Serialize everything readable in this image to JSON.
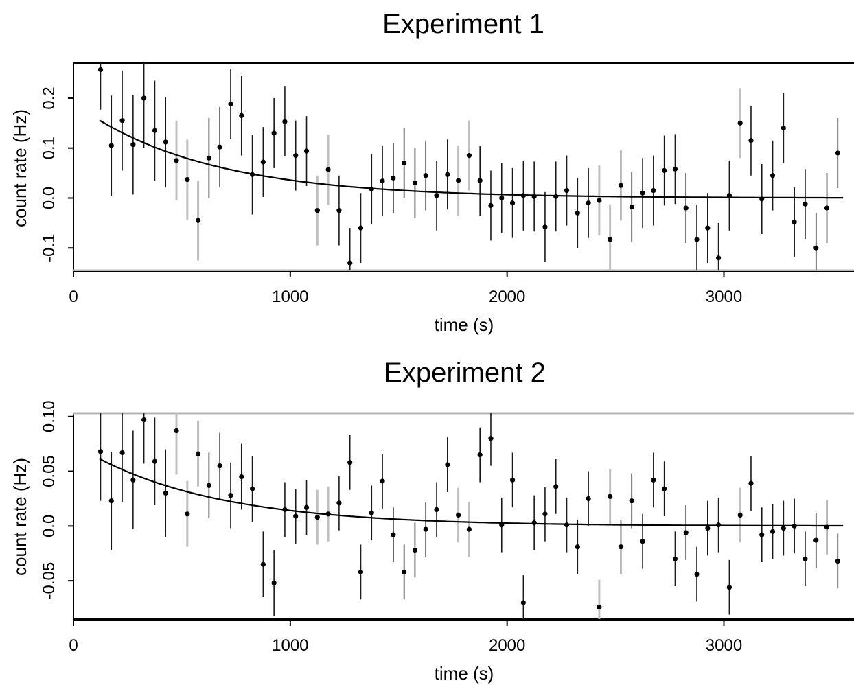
{
  "chart_data": [
    {
      "type": "scatter",
      "title": "Experiment 1",
      "xlabel": "time (s)",
      "ylabel": "count rate (Hz)",
      "xlim": [
        0,
        3600
      ],
      "ylim": [
        -0.145,
        0.27
      ],
      "xticks": [
        "0",
        "1000",
        "2000",
        "3000"
      ],
      "xtick_values": [
        0,
        1000,
        2000,
        3000
      ],
      "yticks": [
        "-0.1",
        "0.0",
        "0.1",
        "0.2"
      ],
      "ytick_values": [
        -0.1,
        0.0,
        0.1,
        0.2
      ],
      "grid": false,
      "fit": {
        "form": "exponential decay",
        "A": 0.19,
        "tau": 600,
        "x_start": 120,
        "x_end": 3550
      },
      "points": [
        {
          "x": 125,
          "y": 0.257,
          "err": 0.08,
          "gray": false
        },
        {
          "x": 175,
          "y": 0.105,
          "err": 0.1,
          "gray": false
        },
        {
          "x": 225,
          "y": 0.155,
          "err": 0.1,
          "gray": false
        },
        {
          "x": 275,
          "y": 0.107,
          "err": 0.1,
          "gray": false
        },
        {
          "x": 325,
          "y": 0.2,
          "err": 0.1,
          "gray": false
        },
        {
          "x": 375,
          "y": 0.135,
          "err": 0.1,
          "gray": false
        },
        {
          "x": 425,
          "y": 0.112,
          "err": 0.09,
          "gray": false
        },
        {
          "x": 475,
          "y": 0.075,
          "err": 0.08,
          "gray": true
        },
        {
          "x": 525,
          "y": 0.037,
          "err": 0.08,
          "gray": true
        },
        {
          "x": 575,
          "y": -0.045,
          "err": 0.08,
          "gray": true
        },
        {
          "x": 625,
          "y": 0.08,
          "err": 0.08,
          "gray": false
        },
        {
          "x": 675,
          "y": 0.102,
          "err": 0.08,
          "gray": false
        },
        {
          "x": 725,
          "y": 0.188,
          "err": 0.07,
          "gray": false
        },
        {
          "x": 775,
          "y": 0.165,
          "err": 0.08,
          "gray": false
        },
        {
          "x": 825,
          "y": 0.047,
          "err": 0.08,
          "gray": false
        },
        {
          "x": 875,
          "y": 0.072,
          "err": 0.07,
          "gray": false
        },
        {
          "x": 925,
          "y": 0.13,
          "err": 0.07,
          "gray": false
        },
        {
          "x": 975,
          "y": 0.153,
          "err": 0.07,
          "gray": false
        },
        {
          "x": 1025,
          "y": 0.085,
          "err": 0.07,
          "gray": false
        },
        {
          "x": 1075,
          "y": 0.094,
          "err": 0.07,
          "gray": false
        },
        {
          "x": 1125,
          "y": -0.025,
          "err": 0.07,
          "gray": true
        },
        {
          "x": 1175,
          "y": 0.057,
          "err": 0.07,
          "gray": true
        },
        {
          "x": 1225,
          "y": -0.025,
          "err": 0.07,
          "gray": false
        },
        {
          "x": 1275,
          "y": -0.13,
          "err": 0.07,
          "gray": false
        },
        {
          "x": 1325,
          "y": -0.06,
          "err": 0.07,
          "gray": false
        },
        {
          "x": 1375,
          "y": 0.018,
          "err": 0.07,
          "gray": false
        },
        {
          "x": 1425,
          "y": 0.034,
          "err": 0.07,
          "gray": false
        },
        {
          "x": 1475,
          "y": 0.04,
          "err": 0.07,
          "gray": false
        },
        {
          "x": 1525,
          "y": 0.07,
          "err": 0.07,
          "gray": false
        },
        {
          "x": 1575,
          "y": 0.03,
          "err": 0.07,
          "gray": false
        },
        {
          "x": 1625,
          "y": 0.045,
          "err": 0.07,
          "gray": false
        },
        {
          "x": 1675,
          "y": 0.005,
          "err": 0.07,
          "gray": false
        },
        {
          "x": 1725,
          "y": 0.047,
          "err": 0.07,
          "gray": false
        },
        {
          "x": 1775,
          "y": 0.035,
          "err": 0.07,
          "gray": true
        },
        {
          "x": 1825,
          "y": 0.085,
          "err": 0.07,
          "gray": true
        },
        {
          "x": 1875,
          "y": 0.035,
          "err": 0.07,
          "gray": false
        },
        {
          "x": 1925,
          "y": -0.015,
          "err": 0.07,
          "gray": false
        },
        {
          "x": 1975,
          "y": 0.0,
          "err": 0.07,
          "gray": false
        },
        {
          "x": 2025,
          "y": -0.01,
          "err": 0.07,
          "gray": false
        },
        {
          "x": 2075,
          "y": 0.005,
          "err": 0.07,
          "gray": false
        },
        {
          "x": 2125,
          "y": 0.003,
          "err": 0.07,
          "gray": false
        },
        {
          "x": 2175,
          "y": -0.058,
          "err": 0.07,
          "gray": false
        },
        {
          "x": 2225,
          "y": 0.003,
          "err": 0.07,
          "gray": false
        },
        {
          "x": 2275,
          "y": 0.015,
          "err": 0.07,
          "gray": false
        },
        {
          "x": 2325,
          "y": -0.03,
          "err": 0.07,
          "gray": false
        },
        {
          "x": 2375,
          "y": -0.01,
          "err": 0.07,
          "gray": false
        },
        {
          "x": 2425,
          "y": -0.005,
          "err": 0.07,
          "gray": true
        },
        {
          "x": 2475,
          "y": -0.083,
          "err": 0.07,
          "gray": true
        },
        {
          "x": 2525,
          "y": 0.025,
          "err": 0.07,
          "gray": false
        },
        {
          "x": 2575,
          "y": -0.018,
          "err": 0.07,
          "gray": false
        },
        {
          "x": 2625,
          "y": 0.01,
          "err": 0.07,
          "gray": false
        },
        {
          "x": 2675,
          "y": 0.015,
          "err": 0.07,
          "gray": false
        },
        {
          "x": 2725,
          "y": 0.055,
          "err": 0.07,
          "gray": false
        },
        {
          "x": 2775,
          "y": 0.058,
          "err": 0.07,
          "gray": false
        },
        {
          "x": 2825,
          "y": -0.02,
          "err": 0.07,
          "gray": false
        },
        {
          "x": 2875,
          "y": -0.083,
          "err": 0.07,
          "gray": false
        },
        {
          "x": 2925,
          "y": -0.06,
          "err": 0.07,
          "gray": false
        },
        {
          "x": 2975,
          "y": -0.12,
          "err": 0.07,
          "gray": false
        },
        {
          "x": 3025,
          "y": 0.005,
          "err": 0.07,
          "gray": false
        },
        {
          "x": 3075,
          "y": 0.15,
          "err": 0.07,
          "gray": true
        },
        {
          "x": 3125,
          "y": 0.115,
          "err": 0.07,
          "gray": false
        },
        {
          "x": 3175,
          "y": -0.002,
          "err": 0.07,
          "gray": false
        },
        {
          "x": 3225,
          "y": 0.045,
          "err": 0.07,
          "gray": false
        },
        {
          "x": 3275,
          "y": 0.14,
          "err": 0.07,
          "gray": false
        },
        {
          "x": 3325,
          "y": -0.048,
          "err": 0.07,
          "gray": false
        },
        {
          "x": 3375,
          "y": -0.012,
          "err": 0.07,
          "gray": false
        },
        {
          "x": 3425,
          "y": -0.1,
          "err": 0.07,
          "gray": false
        },
        {
          "x": 3475,
          "y": -0.02,
          "err": 0.07,
          "gray": false
        },
        {
          "x": 3525,
          "y": 0.09,
          "err": 0.07,
          "gray": false
        }
      ]
    },
    {
      "type": "scatter",
      "title": "Experiment 2",
      "xlabel": "time (s)",
      "ylabel": "count rate (Hz)",
      "xlim": [
        0,
        3600
      ],
      "ylim": [
        -0.085,
        0.103
      ],
      "xticks": [
        "0",
        "1000",
        "2000",
        "3000"
      ],
      "xtick_values": [
        0,
        1000,
        2000,
        3000
      ],
      "yticks": [
        "-0.05",
        "0.0",
        "0.05",
        "0.10"
      ],
      "ytick_values": [
        -0.05,
        0.0,
        0.05,
        0.1
      ],
      "grid": false,
      "fit": {
        "form": "exponential decay",
        "A": 0.075,
        "tau": 600,
        "x_start": 120,
        "x_end": 3550
      },
      "points": [
        {
          "x": 125,
          "y": 0.068,
          "err": 0.045,
          "gray": false
        },
        {
          "x": 175,
          "y": 0.023,
          "err": 0.045,
          "gray": false
        },
        {
          "x": 225,
          "y": 0.067,
          "err": 0.045,
          "gray": false
        },
        {
          "x": 275,
          "y": 0.042,
          "err": 0.045,
          "gray": false
        },
        {
          "x": 325,
          "y": 0.097,
          "err": 0.04,
          "gray": false
        },
        {
          "x": 375,
          "y": 0.059,
          "err": 0.04,
          "gray": false
        },
        {
          "x": 425,
          "y": 0.03,
          "err": 0.04,
          "gray": false
        },
        {
          "x": 475,
          "y": 0.087,
          "err": 0.04,
          "gray": true
        },
        {
          "x": 525,
          "y": 0.011,
          "err": 0.03,
          "gray": true
        },
        {
          "x": 575,
          "y": 0.066,
          "err": 0.03,
          "gray": true
        },
        {
          "x": 625,
          "y": 0.037,
          "err": 0.03,
          "gray": false
        },
        {
          "x": 675,
          "y": 0.055,
          "err": 0.03,
          "gray": false
        },
        {
          "x": 725,
          "y": 0.028,
          "err": 0.03,
          "gray": false
        },
        {
          "x": 775,
          "y": 0.045,
          "err": 0.03,
          "gray": false
        },
        {
          "x": 825,
          "y": 0.034,
          "err": 0.03,
          "gray": false
        },
        {
          "x": 875,
          "y": -0.035,
          "err": 0.03,
          "gray": false
        },
        {
          "x": 925,
          "y": -0.052,
          "err": 0.03,
          "gray": false
        },
        {
          "x": 975,
          "y": 0.015,
          "err": 0.025,
          "gray": false
        },
        {
          "x": 1025,
          "y": 0.009,
          "err": 0.025,
          "gray": false
        },
        {
          "x": 1075,
          "y": 0.017,
          "err": 0.025,
          "gray": false
        },
        {
          "x": 1125,
          "y": 0.008,
          "err": 0.025,
          "gray": true
        },
        {
          "x": 1175,
          "y": 0.011,
          "err": 0.025,
          "gray": true
        },
        {
          "x": 1225,
          "y": 0.021,
          "err": 0.025,
          "gray": false
        },
        {
          "x": 1275,
          "y": 0.058,
          "err": 0.025,
          "gray": false
        },
        {
          "x": 1325,
          "y": -0.042,
          "err": 0.025,
          "gray": false
        },
        {
          "x": 1375,
          "y": 0.012,
          "err": 0.025,
          "gray": false
        },
        {
          "x": 1425,
          "y": 0.041,
          "err": 0.025,
          "gray": false
        },
        {
          "x": 1475,
          "y": -0.008,
          "err": 0.025,
          "gray": false
        },
        {
          "x": 1525,
          "y": -0.042,
          "err": 0.025,
          "gray": false
        },
        {
          "x": 1575,
          "y": -0.022,
          "err": 0.025,
          "gray": false
        },
        {
          "x": 1625,
          "y": -0.003,
          "err": 0.025,
          "gray": false
        },
        {
          "x": 1675,
          "y": 0.015,
          "err": 0.025,
          "gray": false
        },
        {
          "x": 1725,
          "y": 0.056,
          "err": 0.025,
          "gray": false
        },
        {
          "x": 1775,
          "y": 0.01,
          "err": 0.025,
          "gray": true
        },
        {
          "x": 1825,
          "y": -0.003,
          "err": 0.025,
          "gray": true
        },
        {
          "x": 1875,
          "y": 0.065,
          "err": 0.025,
          "gray": false
        },
        {
          "x": 1925,
          "y": 0.08,
          "err": 0.025,
          "gray": false
        },
        {
          "x": 1975,
          "y": 0.001,
          "err": 0.025,
          "gray": false
        },
        {
          "x": 2025,
          "y": 0.042,
          "err": 0.025,
          "gray": false
        },
        {
          "x": 2075,
          "y": -0.07,
          "err": 0.025,
          "gray": false
        },
        {
          "x": 2125,
          "y": 0.003,
          "err": 0.025,
          "gray": false
        },
        {
          "x": 2175,
          "y": 0.011,
          "err": 0.025,
          "gray": false
        },
        {
          "x": 2225,
          "y": 0.036,
          "err": 0.025,
          "gray": false
        },
        {
          "x": 2275,
          "y": 0.001,
          "err": 0.025,
          "gray": false
        },
        {
          "x": 2325,
          "y": -0.019,
          "err": 0.025,
          "gray": false
        },
        {
          "x": 2375,
          "y": 0.025,
          "err": 0.025,
          "gray": false
        },
        {
          "x": 2425,
          "y": -0.074,
          "err": 0.025,
          "gray": true
        },
        {
          "x": 2475,
          "y": 0.027,
          "err": 0.025,
          "gray": true
        },
        {
          "x": 2525,
          "y": -0.019,
          "err": 0.025,
          "gray": false
        },
        {
          "x": 2575,
          "y": 0.023,
          "err": 0.025,
          "gray": false
        },
        {
          "x": 2625,
          "y": -0.014,
          "err": 0.025,
          "gray": false
        },
        {
          "x": 2675,
          "y": 0.042,
          "err": 0.025,
          "gray": false
        },
        {
          "x": 2725,
          "y": 0.034,
          "err": 0.025,
          "gray": false
        },
        {
          "x": 2775,
          "y": -0.03,
          "err": 0.025,
          "gray": false
        },
        {
          "x": 2825,
          "y": -0.006,
          "err": 0.025,
          "gray": false
        },
        {
          "x": 2875,
          "y": -0.044,
          "err": 0.025,
          "gray": false
        },
        {
          "x": 2925,
          "y": -0.002,
          "err": 0.025,
          "gray": false
        },
        {
          "x": 2975,
          "y": 0.001,
          "err": 0.025,
          "gray": false
        },
        {
          "x": 3025,
          "y": -0.056,
          "err": 0.025,
          "gray": false
        },
        {
          "x": 3075,
          "y": 0.01,
          "err": 0.025,
          "gray": true
        },
        {
          "x": 3125,
          "y": 0.039,
          "err": 0.025,
          "gray": false
        },
        {
          "x": 3175,
          "y": -0.008,
          "err": 0.025,
          "gray": false
        },
        {
          "x": 3225,
          "y": -0.005,
          "err": 0.025,
          "gray": false
        },
        {
          "x": 3275,
          "y": -0.002,
          "err": 0.025,
          "gray": false
        },
        {
          "x": 3325,
          "y": 0.0,
          "err": 0.025,
          "gray": false
        },
        {
          "x": 3375,
          "y": -0.03,
          "err": 0.025,
          "gray": false
        },
        {
          "x": 3425,
          "y": -0.013,
          "err": 0.025,
          "gray": false
        },
        {
          "x": 3475,
          "y": -0.001,
          "err": 0.025,
          "gray": false
        },
        {
          "x": 3525,
          "y": -0.032,
          "err": 0.025,
          "gray": false
        }
      ]
    }
  ],
  "colors": {
    "point": "#000000",
    "errbar_dark": "#1a1a1a",
    "errbar_gray": "#c0c0c0",
    "frame": "#000000",
    "frame_gray": "#b4b4b4",
    "fit_line": "#000000"
  }
}
